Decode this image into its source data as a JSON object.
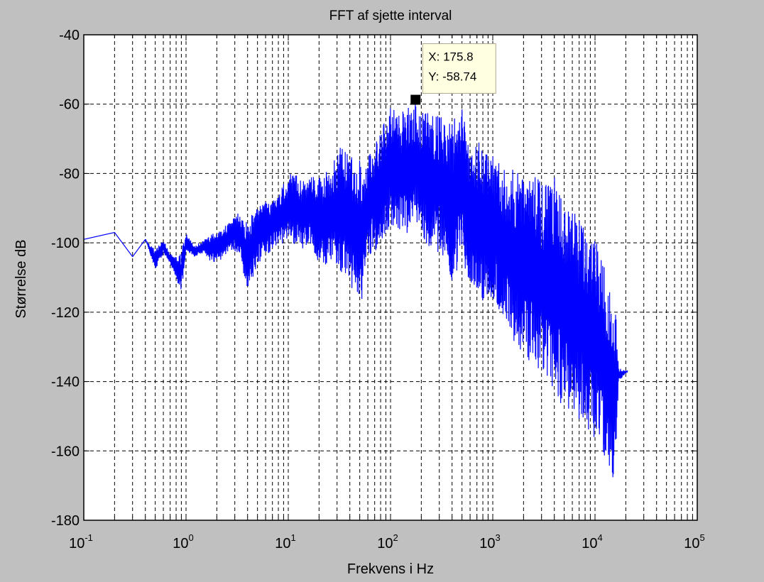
{
  "chart_data": {
    "type": "line",
    "title": "FFT af sjette interval",
    "xlabel": "Frekvens i Hz",
    "ylabel": "Størrelse dB",
    "x_scale": "log",
    "xlim": [
      0.1,
      100000
    ],
    "ylim": [
      -180,
      -40
    ],
    "grid": true,
    "x_ticks": [
      {
        "value": 0.1,
        "base": "10",
        "exp": "-1"
      },
      {
        "value": 1,
        "base": "10",
        "exp": "0"
      },
      {
        "value": 10,
        "base": "10",
        "exp": "1"
      },
      {
        "value": 100,
        "base": "10",
        "exp": "2"
      },
      {
        "value": 1000,
        "base": "10",
        "exp": "3"
      },
      {
        "value": 10000,
        "base": "10",
        "exp": "4"
      },
      {
        "value": 100000,
        "base": "10",
        "exp": "5"
      }
    ],
    "y_ticks": [
      {
        "value": -40,
        "label": "-40"
      },
      {
        "value": -60,
        "label": "-60"
      },
      {
        "value": -80,
        "label": "-80"
      },
      {
        "value": -100,
        "label": "-100"
      },
      {
        "value": -120,
        "label": "-120"
      },
      {
        "value": -140,
        "label": "-140"
      },
      {
        "value": -160,
        "label": "-160"
      },
      {
        "value": -180,
        "label": "-180"
      }
    ],
    "line_color": "#0000ff",
    "series": [
      {
        "x": [
          0.1,
          0.2,
          0.3,
          0.4,
          0.5,
          0.6,
          0.7,
          0.8,
          0.9,
          1.0,
          1.2,
          1.5,
          1.8,
          2.2,
          2.7,
          3.3,
          4.0,
          5.0,
          6.0,
          7.5,
          9.0,
          11,
          14,
          17,
          21,
          26,
          32,
          40,
          50,
          60,
          75,
          90,
          100,
          120,
          150,
          175.8,
          210,
          260,
          320,
          400,
          500,
          600,
          750,
          900,
          1100,
          1400,
          1700,
          2100,
          2600,
          3200,
          4000,
          5000,
          6000,
          7500,
          9000,
          11000,
          13000,
          15000,
          16000,
          17000,
          21000
        ],
        "upper": [
          -99,
          -97,
          -104,
          -99,
          -102,
          -99,
          -103,
          -104,
          -102,
          -97,
          -101,
          -99,
          -97,
          -96,
          -94,
          -91,
          -93,
          -90,
          -88,
          -87,
          -83,
          -79,
          -82,
          -80,
          -81,
          -78,
          -72,
          -74,
          -76,
          -75,
          -70,
          -64,
          -60,
          -63,
          -61,
          -58.74,
          -62,
          -62,
          -63,
          -65,
          -58,
          -72,
          -70,
          -73,
          -76,
          -80,
          -78,
          -82,
          -80,
          -83,
          -80,
          -86,
          -90,
          -94,
          -97,
          -100,
          -108,
          -118,
          -120,
          -136,
          -137
        ],
        "lower": [
          -99,
          -97,
          -104,
          -99,
          -108,
          -103,
          -106,
          -110,
          -115,
          -102,
          -104,
          -103,
          -106,
          -105,
          -102,
          -103,
          -115,
          -106,
          -104,
          -101,
          -100,
          -100,
          -102,
          -101,
          -108,
          -105,
          -110,
          -112,
          -121,
          -104,
          -102,
          -98,
          -95,
          -97,
          -98,
          -96,
          -100,
          -102,
          -104,
          -112,
          -106,
          -112,
          -115,
          -120,
          -118,
          -124,
          -130,
          -132,
          -138,
          -140,
          -145,
          -148,
          -150,
          -152,
          -155,
          -158,
          -165,
          -168,
          -162,
          -140,
          -137
        ]
      }
    ],
    "datatip": {
      "x": 175.8,
      "y": -58.74,
      "x_text": "X: 175.8",
      "y_text": "Y: -58.74"
    }
  }
}
